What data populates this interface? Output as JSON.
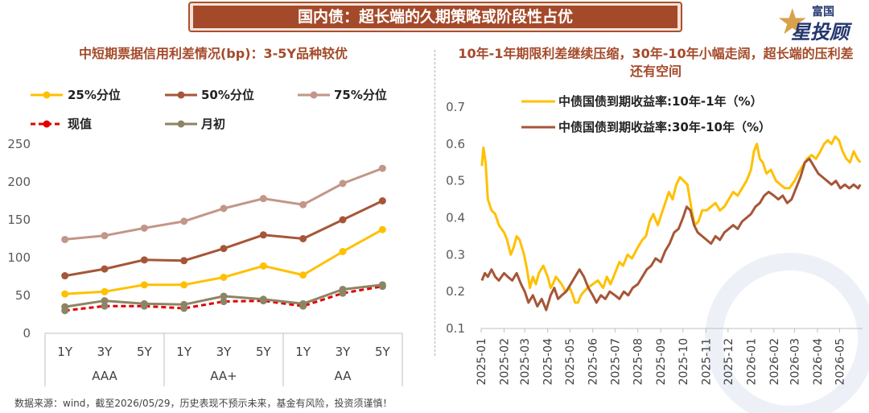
{
  "banner": {
    "title": "国内债：超长端的久期策略或阶段性占优"
  },
  "logo": {
    "brand_top": "富国",
    "brand_main": "星投顾"
  },
  "footer": {
    "source": "数据来源：wind，截至2026/05/29，历史表现不预示未来，基金有风险，投资须谨慎！"
  },
  "colors": {
    "p25": "#ffc000",
    "p50": "#a65638",
    "p75": "#c29688",
    "current": "#e00000",
    "month_start": "#8d8466",
    "s10_1": "#ffc000",
    "s30_10": "#a65638",
    "title": "#a44a2a"
  },
  "chart_data": [
    {
      "type": "line",
      "title": "中短期票据信用利差情况(bp)：3-5Y品种较优",
      "categories": [
        "1Y",
        "3Y",
        "5Y",
        "1Y",
        "3Y",
        "5Y",
        "1Y",
        "3Y",
        "5Y"
      ],
      "groups": [
        "AAA",
        "AA+",
        "AA"
      ],
      "ylim": [
        0,
        250
      ],
      "yticks": [
        0,
        50,
        100,
        150,
        200,
        250
      ],
      "grid": false,
      "legend_position": "top",
      "series": [
        {
          "name": "25%分位",
          "values": [
            52,
            55,
            64,
            64,
            74,
            89,
            77,
            108,
            137
          ]
        },
        {
          "name": "50%分位",
          "values": [
            76,
            85,
            97,
            96,
            112,
            130,
            125,
            150,
            175
          ]
        },
        {
          "name": "75%分位",
          "values": [
            124,
            129,
            139,
            148,
            165,
            178,
            170,
            198,
            218
          ]
        },
        {
          "name": "现值",
          "values": [
            30,
            36,
            36,
            33,
            42,
            43,
            36,
            53,
            62
          ]
        },
        {
          "name": "月初",
          "values": [
            35,
            43,
            39,
            38,
            49,
            45,
            39,
            58,
            64
          ]
        }
      ]
    },
    {
      "type": "line",
      "title": "10年-1年期限利差继续压缩，30年-10年小幅走阔，超长端的压利差还有空间",
      "xlabels": [
        "2025-01",
        "2025-02",
        "2025-03",
        "2025-04",
        "2025-05",
        "2025-06",
        "2025-07",
        "2025-08",
        "2025-09",
        "2025-10",
        "2025-11",
        "2025-12",
        "2026-01",
        "2026-02",
        "2026-03",
        "2026-04",
        "2026-05"
      ],
      "ylim": [
        0.1,
        0.7
      ],
      "yticks": [
        0.1,
        0.2,
        0.3,
        0.4,
        0.5,
        0.6,
        0.7
      ],
      "grid": false,
      "legend_position": "top",
      "series": [
        {
          "name": "中债国债到期收益率:10年-1年（%）",
          "points": [
            [
              "2025-01-02",
              0.54
            ],
            [
              "2025-01-04",
              0.59
            ],
            [
              "2025-01-07",
              0.55
            ],
            [
              "2025-01-10",
              0.45
            ],
            [
              "2025-01-15",
              0.42
            ],
            [
              "2025-01-20",
              0.41
            ],
            [
              "2025-01-25",
              0.38
            ],
            [
              "2025-02-01",
              0.36
            ],
            [
              "2025-02-05",
              0.34
            ],
            [
              "2025-02-10",
              0.3
            ],
            [
              "2025-02-14",
              0.32
            ],
            [
              "2025-02-18",
              0.35
            ],
            [
              "2025-02-22",
              0.34
            ],
            [
              "2025-02-28",
              0.3
            ],
            [
              "2025-03-04",
              0.26
            ],
            [
              "2025-03-08",
              0.21
            ],
            [
              "2025-03-12",
              0.24
            ],
            [
              "2025-03-16",
              0.22
            ],
            [
              "2025-03-20",
              0.25
            ],
            [
              "2025-03-26",
              0.27
            ],
            [
              "2025-04-01",
              0.24
            ],
            [
              "2025-04-05",
              0.21
            ],
            [
              "2025-04-08",
              0.22
            ],
            [
              "2025-04-12",
              0.24
            ],
            [
              "2025-04-16",
              0.23
            ],
            [
              "2025-04-20",
              0.22
            ],
            [
              "2025-04-25",
              0.2
            ],
            [
              "2025-05-01",
              0.21
            ],
            [
              "2025-05-05",
              0.19
            ],
            [
              "2025-05-08",
              0.17
            ],
            [
              "2025-05-12",
              0.17
            ],
            [
              "2025-05-16",
              0.19
            ],
            [
              "2025-05-20",
              0.2
            ],
            [
              "2025-05-25",
              0.21
            ],
            [
              "2025-06-01",
              0.22
            ],
            [
              "2025-06-08",
              0.23
            ],
            [
              "2025-06-15",
              0.21
            ],
            [
              "2025-06-20",
              0.24
            ],
            [
              "2025-06-25",
              0.22
            ],
            [
              "2025-07-01",
              0.25
            ],
            [
              "2025-07-07",
              0.28
            ],
            [
              "2025-07-12",
              0.27
            ],
            [
              "2025-07-18",
              0.3
            ],
            [
              "2025-07-24",
              0.29
            ],
            [
              "2025-08-01",
              0.32
            ],
            [
              "2025-08-07",
              0.34
            ],
            [
              "2025-08-12",
              0.35
            ],
            [
              "2025-08-17",
              0.39
            ],
            [
              "2025-08-22",
              0.41
            ],
            [
              "2025-08-28",
              0.38
            ],
            [
              "2025-09-02",
              0.41
            ],
            [
              "2025-09-07",
              0.44
            ],
            [
              "2025-09-12",
              0.47
            ],
            [
              "2025-09-17",
              0.45
            ],
            [
              "2025-09-22",
              0.49
            ],
            [
              "2025-09-27",
              0.51
            ],
            [
              "2025-10-02",
              0.5
            ],
            [
              "2025-10-07",
              0.49
            ],
            [
              "2025-10-12",
              0.43
            ],
            [
              "2025-10-17",
              0.38
            ],
            [
              "2025-10-22",
              0.39
            ],
            [
              "2025-10-27",
              0.42
            ],
            [
              "2025-11-02",
              0.42
            ],
            [
              "2025-11-08",
              0.43
            ],
            [
              "2025-11-14",
              0.44
            ],
            [
              "2025-11-20",
              0.42
            ],
            [
              "2025-11-26",
              0.43
            ],
            [
              "2025-12-02",
              0.45
            ],
            [
              "2025-12-08",
              0.47
            ],
            [
              "2025-12-14",
              0.46
            ],
            [
              "2025-12-20",
              0.48
            ],
            [
              "2025-12-26",
              0.5
            ],
            [
              "2026-01-01",
              0.53
            ],
            [
              "2026-01-05",
              0.58
            ],
            [
              "2026-01-09",
              0.6
            ],
            [
              "2026-01-13",
              0.56
            ],
            [
              "2026-01-17",
              0.55
            ],
            [
              "2026-01-22",
              0.52
            ],
            [
              "2026-01-28",
              0.53
            ],
            [
              "2026-02-04",
              0.5
            ],
            [
              "2026-02-10",
              0.49
            ],
            [
              "2026-02-16",
              0.48
            ],
            [
              "2026-02-22",
              0.48
            ],
            [
              "2026-03-01",
              0.5
            ],
            [
              "2026-03-06",
              0.52
            ],
            [
              "2026-03-12",
              0.54
            ],
            [
              "2026-03-18",
              0.56
            ],
            [
              "2026-03-24",
              0.57
            ],
            [
              "2026-03-30",
              0.56
            ],
            [
              "2026-04-05",
              0.58
            ],
            [
              "2026-04-10",
              0.6
            ],
            [
              "2026-04-15",
              0.61
            ],
            [
              "2026-04-20",
              0.6
            ],
            [
              "2026-04-25",
              0.62
            ],
            [
              "2026-04-30",
              0.61
            ],
            [
              "2026-05-05",
              0.58
            ],
            [
              "2026-05-10",
              0.56
            ],
            [
              "2026-05-15",
              0.55
            ],
            [
              "2026-05-20",
              0.58
            ],
            [
              "2026-05-25",
              0.56
            ],
            [
              "2026-05-29",
              0.55
            ]
          ]
        },
        {
          "name": "中债国债到期收益率:30年-10年（%）",
          "points": [
            [
              "2025-01-02",
              0.23
            ],
            [
              "2025-01-06",
              0.25
            ],
            [
              "2025-01-10",
              0.24
            ],
            [
              "2025-01-15",
              0.26
            ],
            [
              "2025-01-20",
              0.24
            ],
            [
              "2025-01-25",
              0.23
            ],
            [
              "2025-02-01",
              0.25
            ],
            [
              "2025-02-06",
              0.24
            ],
            [
              "2025-02-12",
              0.23
            ],
            [
              "2025-02-18",
              0.25
            ],
            [
              "2025-02-24",
              0.22
            ],
            [
              "2025-03-01",
              0.2
            ],
            [
              "2025-03-06",
              0.17
            ],
            [
              "2025-03-12",
              0.19
            ],
            [
              "2025-03-18",
              0.16
            ],
            [
              "2025-03-24",
              0.18
            ],
            [
              "2025-03-30",
              0.15
            ],
            [
              "2025-04-05",
              0.19
            ],
            [
              "2025-04-10",
              0.21
            ],
            [
              "2025-04-15",
              0.18
            ],
            [
              "2025-04-20",
              0.19
            ],
            [
              "2025-04-26",
              0.2
            ],
            [
              "2025-05-02",
              0.22
            ],
            [
              "2025-05-08",
              0.24
            ],
            [
              "2025-05-14",
              0.26
            ],
            [
              "2025-05-20",
              0.24
            ],
            [
              "2025-05-26",
              0.21
            ],
            [
              "2025-06-01",
              0.19
            ],
            [
              "2025-06-06",
              0.17
            ],
            [
              "2025-06-12",
              0.19
            ],
            [
              "2025-06-18",
              0.18
            ],
            [
              "2025-06-24",
              0.2
            ],
            [
              "2025-07-01",
              0.19
            ],
            [
              "2025-07-07",
              0.18
            ],
            [
              "2025-07-13",
              0.2
            ],
            [
              "2025-07-19",
              0.19
            ],
            [
              "2025-07-25",
              0.21
            ],
            [
              "2025-08-01",
              0.22
            ],
            [
              "2025-08-07",
              0.24
            ],
            [
              "2025-08-13",
              0.26
            ],
            [
              "2025-08-19",
              0.27
            ],
            [
              "2025-08-25",
              0.29
            ],
            [
              "2025-09-01",
              0.28
            ],
            [
              "2025-09-07",
              0.31
            ],
            [
              "2025-09-13",
              0.33
            ],
            [
              "2025-09-19",
              0.36
            ],
            [
              "2025-09-25",
              0.37
            ],
            [
              "2025-10-01",
              0.4
            ],
            [
              "2025-10-06",
              0.43
            ],
            [
              "2025-10-11",
              0.42
            ],
            [
              "2025-10-16",
              0.38
            ],
            [
              "2025-10-21",
              0.36
            ],
            [
              "2025-10-27",
              0.35
            ],
            [
              "2025-11-02",
              0.34
            ],
            [
              "2025-11-08",
              0.33
            ],
            [
              "2025-11-14",
              0.35
            ],
            [
              "2025-11-20",
              0.34
            ],
            [
              "2025-11-26",
              0.36
            ],
            [
              "2025-12-02",
              0.37
            ],
            [
              "2025-12-08",
              0.38
            ],
            [
              "2025-12-14",
              0.37
            ],
            [
              "2025-12-20",
              0.39
            ],
            [
              "2025-12-26",
              0.4
            ],
            [
              "2026-01-01",
              0.41
            ],
            [
              "2026-01-07",
              0.43
            ],
            [
              "2026-01-13",
              0.44
            ],
            [
              "2026-01-19",
              0.46
            ],
            [
              "2026-01-25",
              0.47
            ],
            [
              "2026-02-01",
              0.46
            ],
            [
              "2026-02-07",
              0.45
            ],
            [
              "2026-02-13",
              0.46
            ],
            [
              "2026-02-19",
              0.44
            ],
            [
              "2026-02-25",
              0.45
            ],
            [
              "2026-03-03",
              0.48
            ],
            [
              "2026-03-09",
              0.51
            ],
            [
              "2026-03-15",
              0.55
            ],
            [
              "2026-03-21",
              0.56
            ],
            [
              "2026-03-27",
              0.54
            ],
            [
              "2026-04-02",
              0.52
            ],
            [
              "2026-04-08",
              0.51
            ],
            [
              "2026-04-14",
              0.5
            ],
            [
              "2026-04-20",
              0.49
            ],
            [
              "2026-04-26",
              0.5
            ],
            [
              "2026-05-02",
              0.48
            ],
            [
              "2026-05-08",
              0.49
            ],
            [
              "2026-05-14",
              0.48
            ],
            [
              "2026-05-20",
              0.49
            ],
            [
              "2026-05-26",
              0.48
            ],
            [
              "2026-05-29",
              0.49
            ]
          ]
        }
      ]
    }
  ]
}
